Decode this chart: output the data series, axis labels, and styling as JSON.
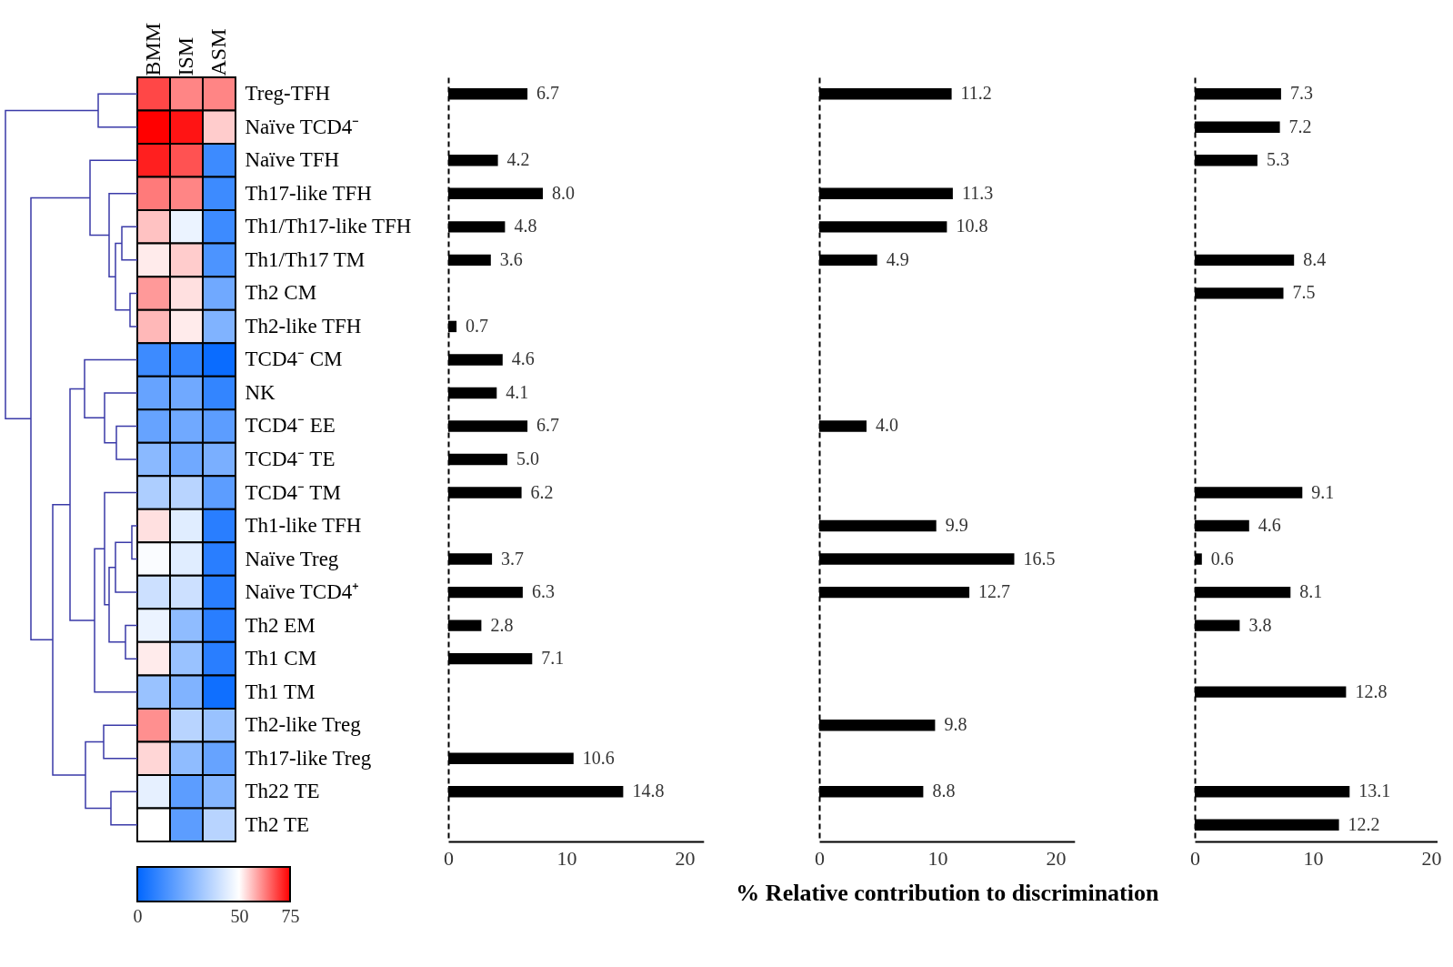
{
  "chart_data": [
    {
      "type": "heatmap",
      "categories": [
        "BMM",
        "ISM",
        "ASM"
      ],
      "y_categories": [
        "Treg-TFH",
        "Naïve TCD4⁻",
        "Naïve TFH",
        "Th17-like TFH",
        "Th1/Th17-like TFH",
        "Th1/Th17 TM",
        "Th2 CM",
        "Th2-like TFH",
        "TCD4⁻ CM",
        "NK",
        "TCD4⁻ EE",
        "TCD4⁻ TE",
        "TCD4⁻ TM",
        "Th1-like TFH",
        "Naïve Treg",
        "Naïve TCD4⁺",
        "Th2 EM",
        "Th1 CM",
        "Th1 TM",
        "Th2-like Treg",
        "Th17-like Treg",
        "Th22 TE",
        "Th2 TE"
      ],
      "cells": [
        [
          68,
          62,
          62
        ],
        [
          75,
          73,
          55
        ],
        [
          72,
          67,
          12
        ],
        [
          63,
          62,
          12
        ],
        [
          56,
          46,
          12
        ],
        [
          52,
          55,
          15
        ],
        [
          60,
          53,
          22
        ],
        [
          57,
          52,
          25
        ],
        [
          12,
          10,
          2
        ],
        [
          20,
          22,
          10
        ],
        [
          20,
          22,
          18
        ],
        [
          27,
          22,
          24
        ],
        [
          34,
          36,
          18
        ],
        [
          53,
          44,
          8
        ],
        [
          49,
          44,
          8
        ],
        [
          40,
          40,
          8
        ],
        [
          46,
          28,
          8
        ],
        [
          52,
          30,
          8
        ],
        [
          30,
          25,
          3
        ],
        [
          61,
          36,
          30
        ],
        [
          54,
          28,
          20
        ],
        [
          45,
          18,
          26
        ],
        [
          50,
          18,
          36
        ]
      ],
      "clim": [
        0,
        75
      ],
      "cticks": [
        0,
        50,
        75
      ]
    },
    {
      "type": "bar",
      "orientation": "horizontal",
      "tick_labels": "x",
      "categories": [
        null,
        null,
        null,
        null,
        null,
        null,
        null,
        null,
        null,
        null,
        null,
        null,
        null,
        null,
        null,
        null,
        null,
        null,
        null,
        null,
        null,
        null,
        null
      ],
      "values": [
        6.7,
        null,
        4.2,
        8.0,
        4.8,
        3.6,
        null,
        0.7,
        4.6,
        4.1,
        6.7,
        5.0,
        6.2,
        null,
        3.7,
        6.3,
        2.8,
        7.1,
        null,
        null,
        10.6,
        14.8,
        null
      ],
      "value_labels": [
        "6.7",
        null,
        "4.2",
        "8.0",
        "4.8",
        "3.6",
        null,
        "0.7",
        "4.6",
        "4.1",
        "6.7",
        "5.0",
        "6.2",
        null,
        "3.7",
        "6.3",
        "2.8",
        "7.1",
        null,
        null,
        "10.6",
        "14.8",
        null
      ],
      "color": "#000000",
      "xlim": [
        0,
        21.6
      ],
      "xticks": [
        0,
        10,
        20
      ]
    },
    {
      "type": "bar",
      "orientation": "horizontal",
      "tick_labels": "x",
      "xlabel": "% Relative contribution to discrimination",
      "categories": [
        null,
        null,
        null,
        null,
        null,
        null,
        null,
        null,
        null,
        null,
        null,
        null,
        null,
        null,
        null,
        null,
        null,
        null,
        null,
        null,
        null,
        null,
        null
      ],
      "values": [
        11.2,
        null,
        null,
        11.3,
        10.8,
        4.9,
        null,
        null,
        null,
        null,
        4.0,
        null,
        null,
        9.9,
        16.5,
        12.7,
        null,
        null,
        null,
        9.8,
        null,
        8.8,
        null
      ],
      "value_labels": [
        "11.2",
        null,
        null,
        "11.3",
        "10.8",
        "4.9",
        null,
        null,
        null,
        null,
        "4.0",
        null,
        null,
        "9.9",
        "16.5",
        "12.7",
        null,
        null,
        null,
        "9.8",
        null,
        "8.8",
        null
      ],
      "color": "#000000",
      "xlim": [
        0,
        21.6
      ],
      "xticks": [
        0,
        10,
        20
      ]
    },
    {
      "type": "bar",
      "orientation": "horizontal",
      "tick_labels": "x",
      "categories": [
        null,
        null,
        null,
        null,
        null,
        null,
        null,
        null,
        null,
        null,
        null,
        null,
        null,
        null,
        null,
        null,
        null,
        null,
        null,
        null,
        null,
        null,
        null
      ],
      "values": [
        7.3,
        7.2,
        5.3,
        null,
        null,
        8.4,
        7.5,
        null,
        null,
        null,
        null,
        null,
        9.1,
        4.6,
        0.6,
        8.1,
        3.8,
        null,
        12.8,
        null,
        null,
        13.1,
        12.2
      ],
      "value_labels": [
        "7.3",
        "7.2",
        "5.3",
        null,
        null,
        "8.4",
        "7.5",
        null,
        null,
        null,
        null,
        null,
        "9.1",
        "4.6",
        "0.6",
        "8.1",
        "3.8",
        null,
        "12.8",
        null,
        null,
        "13.1",
        "12.2"
      ],
      "color": "#000000",
      "xlim": [
        0,
        20.5
      ],
      "xticks": [
        0,
        10,
        20
      ]
    }
  ]
}
